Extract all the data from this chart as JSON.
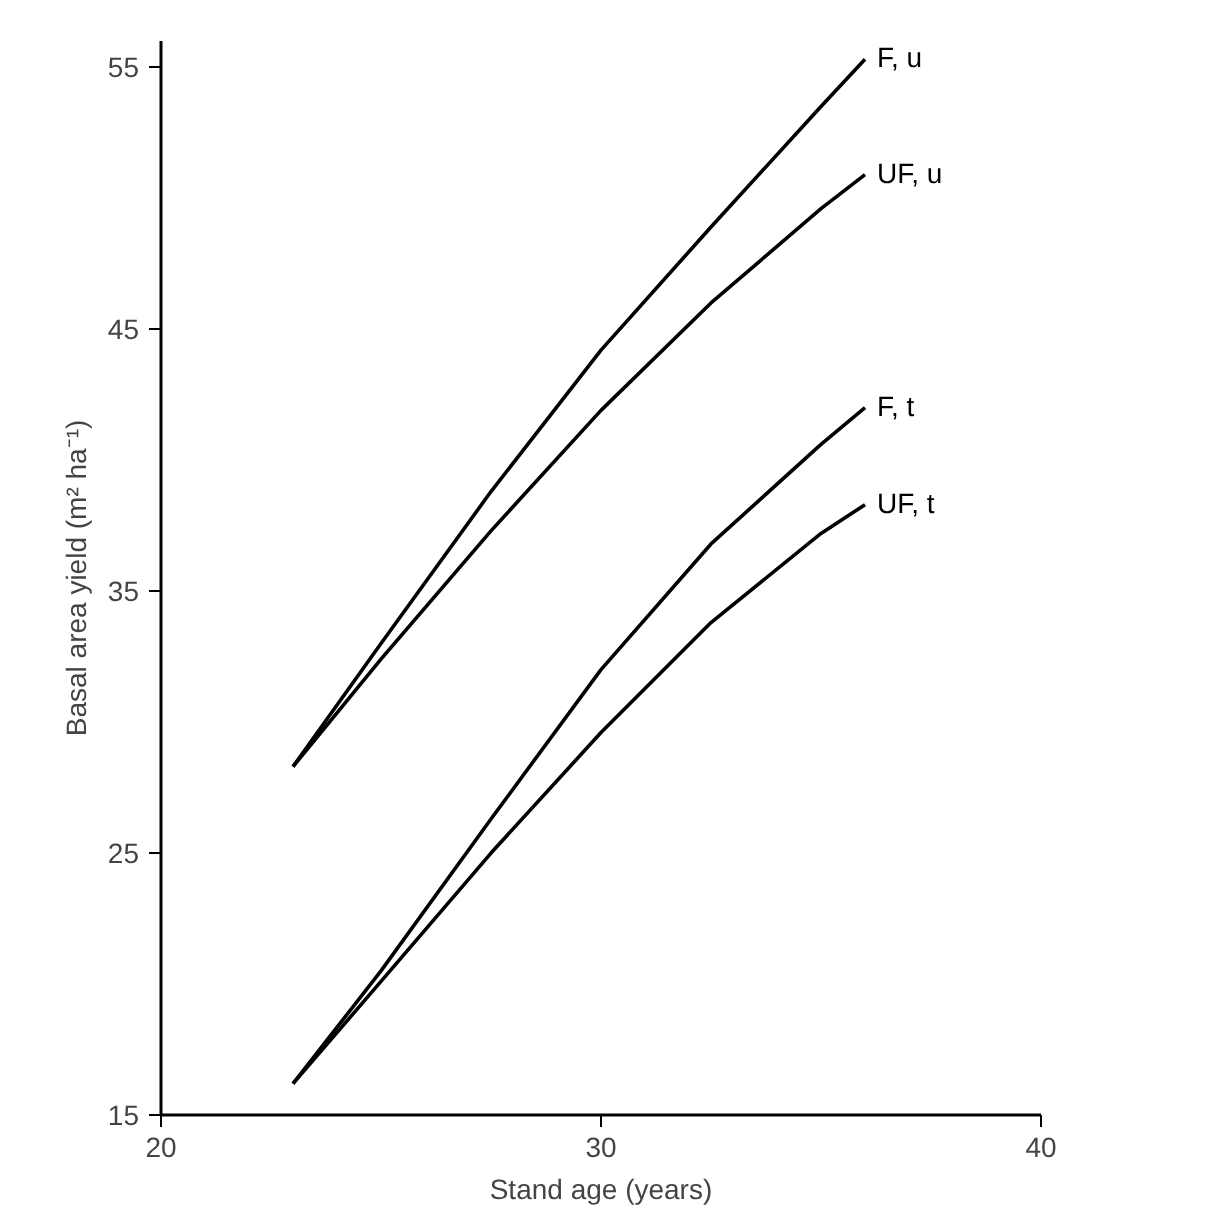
{
  "chart_data": {
    "type": "line",
    "xlabel": "Stand age (years)",
    "ylabel": "Basal area yield (m² ha⁻¹)",
    "x": [
      23,
      25,
      27.5,
      30,
      32.5,
      35,
      36
    ],
    "series": [
      {
        "name": "F, u",
        "color": "#000000",
        "values": [
          28.3,
          33.0,
          38.8,
          44.2,
          48.9,
          53.5,
          55.3
        ]
      },
      {
        "name": "UF, u",
        "color": "#000000",
        "values": [
          28.3,
          32.4,
          37.3,
          41.9,
          46.0,
          49.6,
          50.9
        ]
      },
      {
        "name": "F, t",
        "color": "#000000",
        "values": [
          16.2,
          20.5,
          26.3,
          32.0,
          36.8,
          40.6,
          42.0
        ]
      },
      {
        "name": "UF, t",
        "color": "#000000",
        "values": [
          16.2,
          20.1,
          25.0,
          29.6,
          33.8,
          37.2,
          38.3
        ]
      }
    ],
    "xlim": [
      20,
      40
    ],
    "ylim": [
      15,
      56
    ],
    "xticks": [
      20,
      30,
      40
    ],
    "yticks": [
      15,
      25,
      35,
      45,
      55
    ],
    "grid": false,
    "marker": "none",
    "line_style": "solid"
  }
}
